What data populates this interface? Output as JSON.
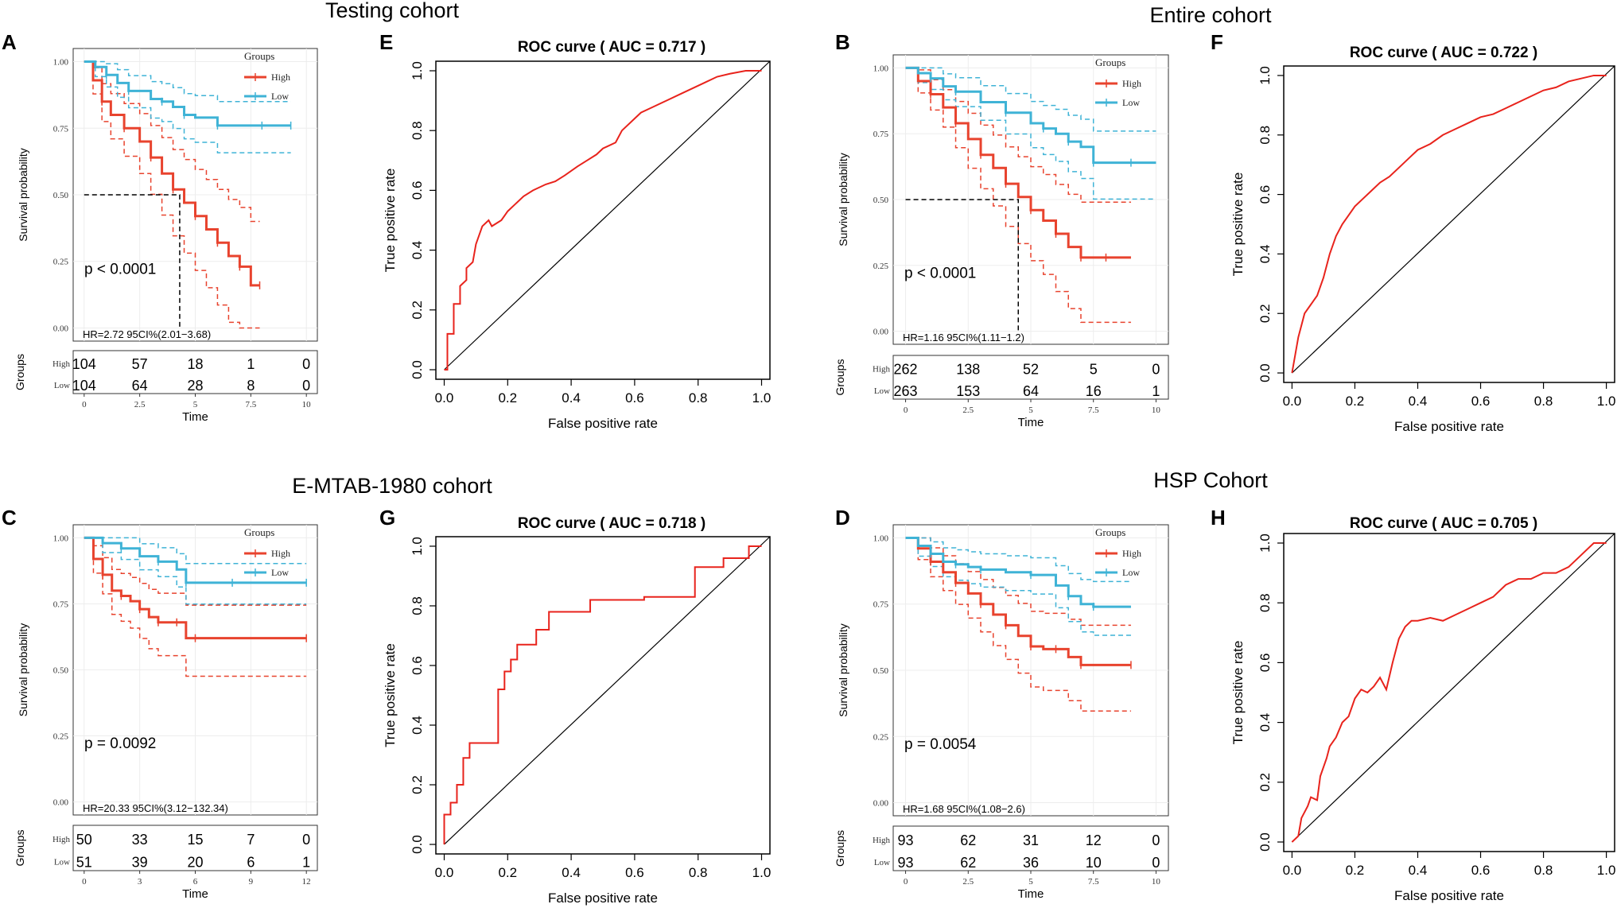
{
  "cohort_titles": [
    "Testing cohort",
    "Entire cohort",
    "E-MTAB-1980 cohort",
    "HSP Cohort"
  ],
  "labels": {
    "survival_ylabel": "Survival probability",
    "time_label": "Time",
    "groups_label": "Groups",
    "legend_title": "Groups",
    "high": "High",
    "low": "Low",
    "roc_xlabel": "False positive rate",
    "roc_ylabel": "True positive rate"
  },
  "colors": {
    "high": "#e8432e",
    "low": "#3fb3d6",
    "axis": "#000000",
    "grid": "#ededed"
  },
  "chart_data": [
    {
      "type": "line",
      "kind": "km",
      "panel": "A",
      "cohort": "Testing cohort",
      "xlabel": "Time",
      "ylabel": "Survival probability",
      "xlim": [
        0,
        10
      ],
      "ylim": [
        0,
        1
      ],
      "x_ticks": [
        "0",
        "2.5",
        "5",
        "7.5",
        "10"
      ],
      "y_ticks": [
        "0.00",
        "0.25",
        "0.50",
        "0.75",
        "1.00"
      ],
      "legend": [
        "High",
        "Low"
      ],
      "series": [
        {
          "name": "High",
          "x": [
            0,
            0.4,
            0.8,
            1.2,
            1.8,
            2.5,
            3.0,
            3.5,
            4.0,
            4.5,
            5.0,
            5.5,
            6.0,
            6.5,
            7.0,
            7.5,
            7.9
          ],
          "y": [
            1,
            0.93,
            0.85,
            0.8,
            0.75,
            0.7,
            0.64,
            0.58,
            0.52,
            0.47,
            0.42,
            0.37,
            0.32,
            0.27,
            0.23,
            0.16,
            0.16
          ]
        },
        {
          "name": "Low",
          "x": [
            0,
            0.5,
            1.0,
            1.5,
            2.0,
            3.0,
            3.5,
            4.0,
            4.5,
            5.0,
            6.0,
            7.0,
            8.0,
            9.0,
            9.3
          ],
          "y": [
            1,
            0.98,
            0.95,
            0.92,
            0.89,
            0.86,
            0.85,
            0.83,
            0.8,
            0.79,
            0.76,
            0.76,
            0.76,
            0.76,
            0.76
          ]
        }
      ],
      "median": {
        "x": 4.3,
        "y": 0.5
      },
      "p_value": "p < 0.0001",
      "hr": "HR=2.72 95CI%(2.01−3.68)",
      "risk_times": [
        0,
        2.5,
        5,
        7.5,
        10
      ],
      "risk_x_ticks": [
        "0",
        "2.5",
        "5",
        "7.5",
        "10"
      ],
      "risk_high": [
        "104",
        "57",
        "18",
        "1",
        "0"
      ],
      "risk_low": [
        "104",
        "64",
        "28",
        "8",
        "0"
      ]
    },
    {
      "type": "line",
      "kind": "km",
      "panel": "B",
      "cohort": "Entire cohort",
      "xlabel": "Time",
      "ylabel": "Survival probability",
      "xlim": [
        0,
        10
      ],
      "ylim": [
        0,
        1
      ],
      "x_ticks": [
        "0",
        "2.5",
        "5",
        "7.5",
        "10"
      ],
      "y_ticks": [
        "0.00",
        "0.25",
        "0.50",
        "0.75",
        "1.00"
      ],
      "legend": [
        "High",
        "Low"
      ],
      "series": [
        {
          "name": "High",
          "x": [
            0,
            0.5,
            1.0,
            1.5,
            2.0,
            2.5,
            3.0,
            3.5,
            4.0,
            4.5,
            5.0,
            5.5,
            6.0,
            6.5,
            7.0,
            7.5,
            8.0,
            9.0
          ],
          "y": [
            1,
            0.95,
            0.9,
            0.85,
            0.79,
            0.73,
            0.67,
            0.62,
            0.56,
            0.51,
            0.46,
            0.42,
            0.37,
            0.32,
            0.28,
            0.28,
            0.28,
            0.28
          ]
        },
        {
          "name": "Low",
          "x": [
            0,
            0.5,
            1.0,
            1.5,
            2.0,
            3.0,
            4.0,
            5.0,
            5.5,
            6.0,
            6.5,
            7.0,
            7.5,
            8.0,
            9.0,
            10.0
          ],
          "y": [
            1,
            0.98,
            0.96,
            0.93,
            0.91,
            0.87,
            0.83,
            0.79,
            0.77,
            0.75,
            0.72,
            0.7,
            0.64,
            0.64,
            0.64,
            0.64
          ]
        }
      ],
      "median": {
        "x": 4.5,
        "y": 0.5
      },
      "p_value": "p < 0.0001",
      "hr": "HR=1.16 95CI%(1.11−1.2)",
      "risk_times": [
        0,
        2.5,
        5,
        7.5,
        10
      ],
      "risk_x_ticks": [
        "0",
        "2.5",
        "5",
        "7.5",
        "10"
      ],
      "risk_high": [
        "262",
        "138",
        "52",
        "5",
        "0"
      ],
      "risk_low": [
        "263",
        "153",
        "64",
        "16",
        "1"
      ]
    },
    {
      "type": "line",
      "kind": "km",
      "panel": "C",
      "cohort": "E-MTAB-1980 cohort",
      "xlabel": "Time",
      "ylabel": "Survival probability",
      "xlim": [
        0,
        12
      ],
      "ylim": [
        0,
        1
      ],
      "x_ticks": [
        "0",
        "3",
        "6",
        "9",
        "12"
      ],
      "y_ticks": [
        "0.00",
        "0.25",
        "0.50",
        "0.75",
        "1.00"
      ],
      "legend": [
        "High",
        "Low"
      ],
      "series": [
        {
          "name": "High",
          "x": [
            0,
            0.5,
            1.0,
            1.5,
            2.0,
            2.5,
            3.0,
            3.5,
            4.0,
            4.5,
            5.0,
            5.5,
            6.0,
            9.0,
            12.0
          ],
          "y": [
            1,
            0.92,
            0.86,
            0.8,
            0.78,
            0.76,
            0.73,
            0.7,
            0.68,
            0.68,
            0.68,
            0.62,
            0.62,
            0.62,
            0.62
          ]
        },
        {
          "name": "Low",
          "x": [
            0,
            1.0,
            2.0,
            3.0,
            4.0,
            5.0,
            5.5,
            6.0,
            8.0,
            9.0,
            12.0
          ],
          "y": [
            1,
            0.98,
            0.96,
            0.93,
            0.91,
            0.88,
            0.83,
            0.83,
            0.83,
            0.83,
            0.83
          ]
        }
      ],
      "p_value": "p = 0.0092",
      "hr": "HR=20.33 95CI%(3.12−132.34)",
      "risk_times": [
        0,
        3,
        6,
        9,
        12
      ],
      "risk_x_ticks": [
        "0",
        "3",
        "6",
        "9",
        "12"
      ],
      "risk_high": [
        "50",
        "33",
        "15",
        "7",
        "0"
      ],
      "risk_low": [
        "51",
        "39",
        "20",
        "6",
        "1"
      ]
    },
    {
      "type": "line",
      "kind": "km",
      "panel": "D",
      "cohort": "HSP Cohort",
      "xlabel": "Time",
      "ylabel": "Survival probability",
      "xlim": [
        0,
        10
      ],
      "ylim": [
        0,
        1
      ],
      "x_ticks": [
        "0",
        "2.5",
        "5",
        "7.5",
        "10"
      ],
      "y_ticks": [
        "0.00",
        "0.25",
        "0.50",
        "0.75",
        "1.00"
      ],
      "legend": [
        "High",
        "Low"
      ],
      "series": [
        {
          "name": "High",
          "x": [
            0,
            0.5,
            1.0,
            1.5,
            2.0,
            2.5,
            3.0,
            3.5,
            4.0,
            4.5,
            5.0,
            5.5,
            6.0,
            6.5,
            7.0,
            7.5,
            9.0
          ],
          "y": [
            1,
            0.96,
            0.91,
            0.87,
            0.83,
            0.79,
            0.75,
            0.71,
            0.67,
            0.63,
            0.59,
            0.58,
            0.58,
            0.55,
            0.52,
            0.52,
            0.52
          ]
        },
        {
          "name": "Low",
          "x": [
            0,
            0.5,
            1.0,
            1.5,
            2.0,
            2.5,
            3.0,
            4.0,
            5.0,
            6.0,
            6.5,
            7.0,
            7.5,
            9.0
          ],
          "y": [
            1,
            0.97,
            0.94,
            0.91,
            0.9,
            0.89,
            0.88,
            0.87,
            0.86,
            0.82,
            0.78,
            0.75,
            0.74,
            0.74
          ]
        }
      ],
      "p_value": "p = 0.0054",
      "hr": "HR=1.68 95CI%(1.08−2.6)",
      "risk_times": [
        0,
        2.5,
        5,
        7.5,
        10
      ],
      "risk_x_ticks": [
        "0",
        "2.5",
        "5",
        "7.5",
        "10"
      ],
      "risk_high": [
        "93",
        "62",
        "31",
        "12",
        "0"
      ],
      "risk_low": [
        "93",
        "62",
        "36",
        "10",
        "0"
      ]
    },
    {
      "type": "line",
      "kind": "roc",
      "panel": "E",
      "title": "ROC curve ( AUC =  0.717 )",
      "xlabel": "False positive rate",
      "ylabel": "True positive rate",
      "xlim": [
        0,
        1
      ],
      "ylim": [
        0,
        1
      ],
      "x_ticks": [
        "0.0",
        "0.2",
        "0.4",
        "0.6",
        "0.8",
        "1.0"
      ],
      "y_ticks": [
        "0.0",
        "0.2",
        "0.4",
        "0.6",
        "0.8",
        "1.0"
      ],
      "x": [
        0,
        0.01,
        0.01,
        0.03,
        0.03,
        0.05,
        0.05,
        0.07,
        0.07,
        0.09,
        0.1,
        0.12,
        0.14,
        0.15,
        0.18,
        0.2,
        0.22,
        0.25,
        0.28,
        0.32,
        0.35,
        0.38,
        0.42,
        0.45,
        0.48,
        0.5,
        0.54,
        0.56,
        0.6,
        0.62,
        0.66,
        0.7,
        0.74,
        0.78,
        0.82,
        0.86,
        0.9,
        0.95,
        1.0
      ],
      "y": [
        0,
        0,
        0.12,
        0.12,
        0.22,
        0.22,
        0.28,
        0.3,
        0.34,
        0.36,
        0.42,
        0.48,
        0.5,
        0.48,
        0.5,
        0.53,
        0.55,
        0.58,
        0.6,
        0.62,
        0.63,
        0.65,
        0.68,
        0.7,
        0.72,
        0.74,
        0.76,
        0.8,
        0.84,
        0.86,
        0.88,
        0.9,
        0.92,
        0.94,
        0.96,
        0.98,
        0.99,
        1.0,
        1.0
      ]
    },
    {
      "type": "line",
      "kind": "roc",
      "panel": "F",
      "title": "ROC curve ( AUC =  0.722 )",
      "xlabel": "False positive rate",
      "ylabel": "True positive rate",
      "xlim": [
        0,
        1
      ],
      "ylim": [
        0,
        1
      ],
      "x_ticks": [
        "0.0",
        "0.2",
        "0.4",
        "0.6",
        "0.8",
        "1.0"
      ],
      "y_ticks": [
        "0.0",
        "0.2",
        "0.4",
        "0.6",
        "0.8",
        "1.0"
      ],
      "x": [
        0,
        0.01,
        0.02,
        0.03,
        0.04,
        0.06,
        0.08,
        0.1,
        0.12,
        0.14,
        0.16,
        0.18,
        0.2,
        0.22,
        0.25,
        0.28,
        0.31,
        0.34,
        0.37,
        0.4,
        0.44,
        0.48,
        0.52,
        0.56,
        0.6,
        0.64,
        0.68,
        0.72,
        0.76,
        0.8,
        0.84,
        0.88,
        0.92,
        0.96,
        1.0
      ],
      "y": [
        0,
        0.06,
        0.12,
        0.16,
        0.2,
        0.23,
        0.26,
        0.32,
        0.4,
        0.46,
        0.5,
        0.53,
        0.56,
        0.58,
        0.61,
        0.64,
        0.66,
        0.69,
        0.72,
        0.75,
        0.77,
        0.8,
        0.82,
        0.84,
        0.86,
        0.87,
        0.89,
        0.91,
        0.93,
        0.95,
        0.96,
        0.98,
        0.99,
        1.0,
        1.0
      ]
    },
    {
      "type": "line",
      "kind": "roc",
      "panel": "G",
      "title": "ROC curve ( AUC =  0.718 )",
      "xlabel": "False positive rate",
      "ylabel": "True positive rate",
      "xlim": [
        0,
        1
      ],
      "ylim": [
        0,
        1
      ],
      "x_ticks": [
        "0.0",
        "0.2",
        "0.4",
        "0.6",
        "0.8",
        "1.0"
      ],
      "y_ticks": [
        "0.0",
        "0.2",
        "0.4",
        "0.6",
        "0.8",
        "1.0"
      ],
      "x": [
        0,
        0,
        0.02,
        0.02,
        0.04,
        0.04,
        0.06,
        0.06,
        0.08,
        0.08,
        0.17,
        0.17,
        0.19,
        0.19,
        0.21,
        0.21,
        0.23,
        0.23,
        0.29,
        0.29,
        0.33,
        0.33,
        0.46,
        0.46,
        0.63,
        0.63,
        0.79,
        0.79,
        0.88,
        0.88,
        0.96,
        0.96,
        1.0
      ],
      "y": [
        0,
        0.1,
        0.1,
        0.14,
        0.14,
        0.2,
        0.2,
        0.29,
        0.29,
        0.34,
        0.34,
        0.52,
        0.52,
        0.58,
        0.58,
        0.62,
        0.62,
        0.67,
        0.67,
        0.72,
        0.72,
        0.78,
        0.78,
        0.82,
        0.82,
        0.83,
        0.83,
        0.93,
        0.93,
        0.96,
        0.96,
        1.0,
        1.0
      ]
    },
    {
      "type": "line",
      "kind": "roc",
      "panel": "H",
      "title": "ROC curve ( AUC =  0.705 )",
      "xlabel": "False positive rate",
      "ylabel": "True positive rate",
      "xlim": [
        0,
        1
      ],
      "ylim": [
        0,
        1
      ],
      "x_ticks": [
        "0.0",
        "0.2",
        "0.4",
        "0.6",
        "0.8",
        "1.0"
      ],
      "y_ticks": [
        "0.0",
        "0.2",
        "0.4",
        "0.6",
        "0.8",
        "1.0"
      ],
      "x": [
        0,
        0.02,
        0.03,
        0.05,
        0.06,
        0.08,
        0.09,
        0.11,
        0.12,
        0.14,
        0.16,
        0.18,
        0.2,
        0.22,
        0.24,
        0.26,
        0.28,
        0.3,
        0.32,
        0.34,
        0.36,
        0.38,
        0.4,
        0.44,
        0.48,
        0.52,
        0.56,
        0.6,
        0.64,
        0.68,
        0.72,
        0.76,
        0.8,
        0.84,
        0.88,
        0.92,
        0.96,
        1.0
      ],
      "y": [
        0,
        0.02,
        0.08,
        0.12,
        0.15,
        0.14,
        0.22,
        0.28,
        0.32,
        0.35,
        0.4,
        0.42,
        0.48,
        0.51,
        0.5,
        0.52,
        0.55,
        0.51,
        0.6,
        0.68,
        0.72,
        0.74,
        0.74,
        0.75,
        0.74,
        0.76,
        0.78,
        0.8,
        0.82,
        0.86,
        0.88,
        0.88,
        0.9,
        0.9,
        0.92,
        0.96,
        1.0,
        1.0
      ]
    }
  ]
}
